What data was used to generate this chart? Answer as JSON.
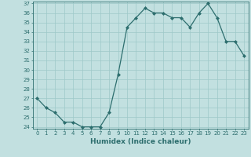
{
  "x": [
    0,
    1,
    2,
    3,
    4,
    5,
    6,
    7,
    8,
    9,
    10,
    11,
    12,
    13,
    14,
    15,
    16,
    17,
    18,
    19,
    20,
    21,
    22,
    23
  ],
  "y": [
    27,
    26,
    25.5,
    24.5,
    24.5,
    24,
    24,
    24,
    25.5,
    29.5,
    34.5,
    35.5,
    36.5,
    36,
    36,
    35.5,
    35.5,
    34.5,
    36,
    37,
    35.5,
    33,
    33,
    31.5
  ],
  "line_color": "#2d6e6e",
  "marker": "D",
  "marker_size": 2.0,
  "bg_color": "#c2e0e0",
  "grid_color": "#9dc8c8",
  "xlabel": "Humidex (Indice chaleur)",
  "ylim_min": 24,
  "ylim_max": 37,
  "xlim_min": -0.5,
  "xlim_max": 23.5,
  "yticks": [
    24,
    25,
    26,
    27,
    28,
    29,
    30,
    31,
    32,
    33,
    34,
    35,
    36,
    37
  ],
  "xticks": [
    0,
    1,
    2,
    3,
    4,
    5,
    6,
    7,
    8,
    9,
    10,
    11,
    12,
    13,
    14,
    15,
    16,
    17,
    18,
    19,
    20,
    21,
    22,
    23
  ],
  "tick_fontsize": 5.0,
  "xlabel_fontsize": 6.5,
  "linewidth": 0.9
}
